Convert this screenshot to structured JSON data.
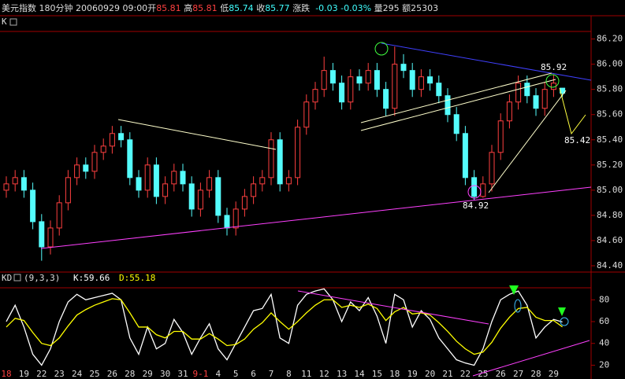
{
  "header": {
    "name": "美元指数",
    "period": "180分钟",
    "datetime": "20060929 09:00",
    "open_label": "开",
    "open": "85.81",
    "high_label": "高",
    "high": "85.81",
    "low_label": "低",
    "low": "85.74",
    "close_label": "收",
    "close": "85.77",
    "change_label": "涨跌",
    "change": "-0.03",
    "change_pct": "-0.03%",
    "volume": "量295",
    "amount": "额25303"
  },
  "chart_data": [
    {
      "type": "candlestick",
      "panel_label": "K",
      "open": [
        85.0,
        85.05,
        85.1,
        85.0,
        84.75,
        84.55,
        84.7,
        84.9,
        85.1,
        85.2,
        85.15,
        85.3,
        85.35,
        85.45,
        85.4,
        85.1,
        85.0,
        85.2,
        84.95,
        85.05,
        85.15,
        85.05,
        84.85,
        85.0,
        85.1,
        84.8,
        84.7,
        84.85,
        84.95,
        85.05,
        85.1,
        85.4,
        85.05,
        85.1,
        85.5,
        85.7,
        85.8,
        85.95,
        85.85,
        85.7,
        85.9,
        85.85,
        85.95,
        85.8,
        85.65,
        86.0,
        85.95,
        85.8,
        85.9,
        85.85,
        85.75,
        85.6,
        85.45,
        85.1,
        84.95,
        85.05,
        85.3,
        85.55,
        85.7,
        85.85,
        85.75,
        85.65,
        85.8,
        85.81
      ],
      "high": [
        85.11,
        85.16,
        85.16,
        85.06,
        84.81,
        84.76,
        84.96,
        85.16,
        85.26,
        85.26,
        85.36,
        85.41,
        85.51,
        85.51,
        85.46,
        85.16,
        85.26,
        85.26,
        85.11,
        85.21,
        85.21,
        85.11,
        85.06,
        85.16,
        85.16,
        84.86,
        84.91,
        85.01,
        85.11,
        85.16,
        85.46,
        85.46,
        85.16,
        85.56,
        85.76,
        85.86,
        86.06,
        86.01,
        85.91,
        85.96,
        85.96,
        86.01,
        86.01,
        85.86,
        86.14,
        86.08,
        86.01,
        85.96,
        85.96,
        85.91,
        85.81,
        85.66,
        85.51,
        85.16,
        85.11,
        85.36,
        85.61,
        85.76,
        85.91,
        85.91,
        85.81,
        85.86,
        85.92,
        85.81
      ],
      "low": [
        84.94,
        84.99,
        84.94,
        84.69,
        84.44,
        84.49,
        84.64,
        84.84,
        85.04,
        85.09,
        85.09,
        85.24,
        85.29,
        85.34,
        85.04,
        84.94,
        84.94,
        84.89,
        84.89,
        84.99,
        84.99,
        84.79,
        84.79,
        84.94,
        84.74,
        84.64,
        84.64,
        84.79,
        84.89,
        84.99,
        85.04,
        84.99,
        84.99,
        85.04,
        85.44,
        85.64,
        85.74,
        85.79,
        85.64,
        85.64,
        85.79,
        85.79,
        85.74,
        85.59,
        85.59,
        85.89,
        85.74,
        85.74,
        85.79,
        85.69,
        85.54,
        85.39,
        85.04,
        84.92,
        84.94,
        84.99,
        85.24,
        85.49,
        85.64,
        85.69,
        85.59,
        85.59,
        85.74,
        85.74
      ],
      "close": [
        85.05,
        85.1,
        85.0,
        84.75,
        84.55,
        84.7,
        84.9,
        85.1,
        85.2,
        85.15,
        85.3,
        85.35,
        85.45,
        85.4,
        85.1,
        85.0,
        85.2,
        84.95,
        85.05,
        85.15,
        85.05,
        84.85,
        85.0,
        85.1,
        84.8,
        84.7,
        84.85,
        84.95,
        85.05,
        85.1,
        85.4,
        85.05,
        85.1,
        85.5,
        85.7,
        85.8,
        85.95,
        85.85,
        85.7,
        85.9,
        85.85,
        85.95,
        85.8,
        85.65,
        86.0,
        85.95,
        85.8,
        85.9,
        85.85,
        85.75,
        85.6,
        85.45,
        85.1,
        84.95,
        85.05,
        85.3,
        85.55,
        85.7,
        85.85,
        85.75,
        85.65,
        85.8,
        85.85,
        85.77
      ],
      "up_color": "#ff4040",
      "down_color": "#54fcfc",
      "ylim": [
        84.35,
        86.26
      ],
      "yticks": [
        {
          "value": 86.2,
          "label": "86.20"
        },
        {
          "value": 86.0,
          "label": "86.00"
        },
        {
          "value": 85.8,
          "label": "85.80"
        },
        {
          "value": 85.6,
          "label": "85.60"
        },
        {
          "value": 85.4,
          "label": "85.40"
        },
        {
          "value": 85.2,
          "label": "85.20"
        },
        {
          "value": 85.0,
          "label": "85.00"
        },
        {
          "value": 84.8,
          "label": "84.80"
        },
        {
          "value": 84.6,
          "label": "84.60"
        },
        {
          "value": 84.4,
          "label": "84.40"
        }
      ],
      "annotations": [
        "85.92",
        "84.92",
        "85.42"
      ]
    },
    {
      "type": "line",
      "title": "KD",
      "params": "(9,3,3)",
      "categories": [
        "18",
        null,
        "19",
        null,
        "22",
        null,
        "23",
        null,
        "24",
        null,
        "25",
        null,
        "26",
        null,
        "28",
        null,
        "29",
        null,
        "30",
        null,
        "31",
        null,
        "9-1",
        null,
        "4",
        null,
        "5",
        null,
        "6",
        null,
        "7",
        null,
        "8",
        null,
        "11",
        null,
        "12",
        null,
        "13",
        null,
        "14",
        null,
        "15",
        null,
        "18",
        null,
        "19",
        null,
        "20",
        null,
        "21",
        null,
        "22",
        null,
        "25",
        null,
        "26",
        null,
        "27",
        null,
        "28",
        null,
        "29",
        null
      ],
      "series": [
        {
          "name": "K:59.66",
          "color": "#ffffff",
          "values": [
            60,
            75,
            55,
            30,
            20,
            35,
            60,
            78,
            85,
            80,
            82,
            84,
            86,
            80,
            45,
            30,
            55,
            35,
            40,
            62,
            50,
            30,
            45,
            58,
            35,
            25,
            40,
            55,
            70,
            72,
            85,
            45,
            40,
            75,
            85,
            88,
            90,
            80,
            60,
            78,
            70,
            82,
            65,
            40,
            85,
            80,
            55,
            70,
            62,
            45,
            35,
            25,
            22,
            20,
            35,
            60,
            80,
            85,
            88,
            75,
            45,
            55,
            62,
            59.66
          ]
        },
        {
          "name": "D:55.18",
          "color": "#ffff00",
          "values": [
            55,
            63,
            61,
            50,
            40,
            38,
            45,
            56,
            66,
            71,
            75,
            78,
            81,
            80,
            68,
            55,
            55,
            48,
            45,
            51,
            51,
            44,
            44,
            49,
            44,
            38,
            39,
            44,
            53,
            59,
            68,
            60,
            53,
            60,
            68,
            75,
            80,
            80,
            73,
            75,
            73,
            76,
            72,
            61,
            69,
            73,
            67,
            68,
            66,
            59,
            51,
            42,
            35,
            30,
            32,
            41,
            54,
            64,
            72,
            73,
            64,
            61,
            61,
            55.18
          ]
        }
      ],
      "ylim": [
        16,
        91
      ],
      "yticks": [
        20,
        40,
        60,
        80
      ]
    }
  ]
}
